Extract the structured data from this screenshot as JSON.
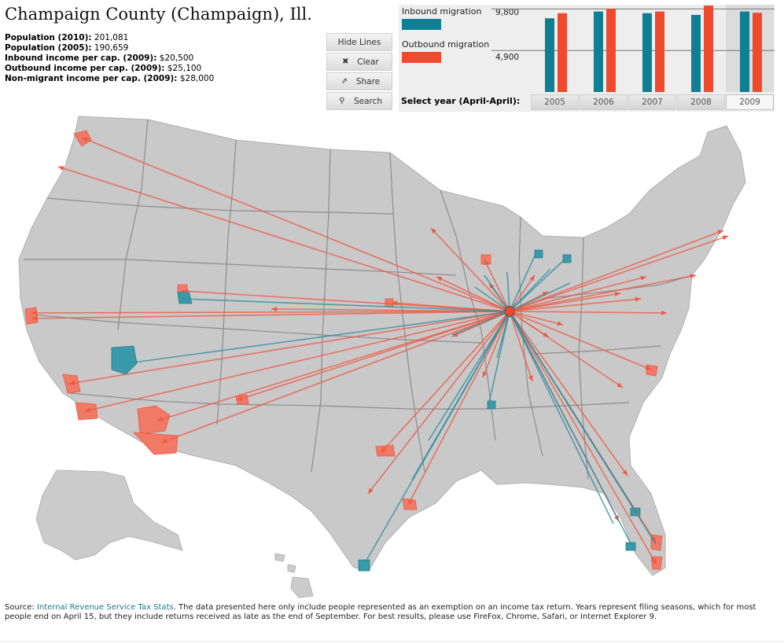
{
  "title": "Champaign County (Champaign), Ill.",
  "stats": [
    {
      "label": "Population (2010):",
      "value": "201,081"
    },
    {
      "label": "Population (2005):",
      "value": "190,659"
    },
    {
      "label": "Inbound income per cap. (2009):",
      "value": "$20,500"
    },
    {
      "label": "Outbound income per cap. (2009):",
      "value": "$25,100"
    },
    {
      "label": "Non-migrant income per cap. (2009):",
      "value": "$28,000"
    }
  ],
  "toolbar": {
    "hide_lines": "Hide Lines",
    "clear": "Clear",
    "share": "Share",
    "search": "Search",
    "clear_icon": "✖",
    "share_icon": "⇗",
    "search_icon": "⚲"
  },
  "legend": {
    "inbound": "Inbound migration",
    "outbound": "Outbound migration",
    "inbound_color": "#0f7f93",
    "outbound_color": "#ef4a2e"
  },
  "chart_data": {
    "type": "bar",
    "categories": [
      "2005",
      "2006",
      "2007",
      "2008",
      "2009"
    ],
    "series": [
      {
        "name": "Inbound migration",
        "values": [
          8700,
          9500,
          9300,
          9100,
          9500
        ]
      },
      {
        "name": "Outbound migration",
        "values": [
          9300,
          9800,
          9500,
          10200,
          9350
        ]
      }
    ],
    "y_ticks": [
      "9,800",
      "4,900"
    ],
    "ylim": [
      0,
      10300
    ],
    "selected": "2009"
  },
  "year_selector_label": "Select year (April-April):",
  "source": {
    "prefix": "Source: ",
    "link": "Internal Revenue Service Tax Stats",
    "text": ". The data presented here only include people represented as an exemption on an income tax return. Years represent filing seasons, which for most people end on April 15, but they include returns received as late as the end of September. For best results, please use FireFox, Chrome, Safari, or Internet Explorer 9."
  },
  "map": {
    "origin": [
      648,
      396
    ],
    "outbound": [
      [
        104,
        175
      ],
      [
        74,
        212
      ],
      [
        40,
        398
      ],
      [
        40,
        405
      ],
      [
        88,
        488
      ],
      [
        108,
        523
      ],
      [
        200,
        535
      ],
      [
        205,
        563
      ],
      [
        301,
        509
      ],
      [
        232,
        370
      ],
      [
        345,
        393
      ],
      [
        498,
        385
      ],
      [
        548,
        290
      ],
      [
        555,
        352
      ],
      [
        575,
        428
      ],
      [
        616,
        330
      ],
      [
        622,
        360
      ],
      [
        484,
        576
      ],
      [
        468,
        628
      ],
      [
        519,
        642
      ],
      [
        677,
        485
      ],
      [
        614,
        480
      ],
      [
        828,
        470
      ],
      [
        792,
        493
      ],
      [
        798,
        605
      ],
      [
        787,
        663
      ],
      [
        834,
        690
      ],
      [
        835,
        718
      ],
      [
        920,
        293
      ],
      [
        926,
        300
      ],
      [
        885,
        350
      ],
      [
        822,
        352
      ],
      [
        815,
        380
      ],
      [
        789,
        373
      ],
      [
        848,
        398
      ],
      [
        716,
        413
      ],
      [
        698,
        429
      ],
      [
        697,
        371
      ],
      [
        680,
        350
      ]
    ],
    "inbound": [
      [
        232,
        380
      ],
      [
        162,
        462
      ],
      [
        463,
        718
      ],
      [
        524,
        610
      ],
      [
        545,
        560
      ],
      [
        575,
        426
      ],
      [
        621,
        516
      ],
      [
        604,
        365
      ],
      [
        616,
        350
      ],
      [
        681,
        323
      ],
      [
        718,
        330
      ],
      [
        700,
        342
      ],
      [
        780,
        666
      ],
      [
        803,
        693
      ],
      [
        834,
        692
      ],
      [
        808,
        650
      ],
      [
        645,
        346
      ],
      [
        632,
        455
      ],
      [
        725,
        360
      ]
    ],
    "out_regions": [
      [
        [
          94,
          170
        ],
        [
          110,
          166
        ],
        [
          116,
          178
        ],
        [
          104,
          186
        ]
      ],
      [
        [
          32,
          393
        ],
        [
          46,
          391
        ],
        [
          48,
          410
        ],
        [
          34,
          412
        ]
      ],
      [
        [
          80,
          476
        ],
        [
          98,
          478
        ],
        [
          102,
          498
        ],
        [
          86,
          500
        ]
      ],
      [
        [
          96,
          512
        ],
        [
          122,
          514
        ],
        [
          124,
          532
        ],
        [
          100,
          534
        ]
      ],
      [
        [
          175,
          520
        ],
        [
          198,
          516
        ],
        [
          216,
          528
        ],
        [
          210,
          548
        ],
        [
          178,
          552
        ]
      ],
      [
        [
          170,
          550
        ],
        [
          226,
          554
        ],
        [
          224,
          576
        ],
        [
          196,
          578
        ]
      ],
      [
        [
          478,
          568
        ],
        [
          500,
          566
        ],
        [
          502,
          580
        ],
        [
          480,
          580
        ]
      ],
      [
        [
          512,
          634
        ],
        [
          528,
          636
        ],
        [
          530,
          648
        ],
        [
          514,
          648
        ]
      ],
      [
        [
          822,
          464
        ],
        [
          836,
          466
        ],
        [
          834,
          478
        ],
        [
          822,
          476
        ]
      ],
      [
        [
          828,
          680
        ],
        [
          842,
          682
        ],
        [
          840,
          700
        ],
        [
          828,
          698
        ]
      ],
      [
        [
          828,
          708
        ],
        [
          842,
          708
        ],
        [
          840,
          724
        ],
        [
          830,
          724
        ]
      ],
      [
        [
          612,
          324
        ],
        [
          624,
          324
        ],
        [
          624,
          336
        ],
        [
          612,
          336
        ]
      ],
      [
        [
          226,
          362
        ],
        [
          238,
          362
        ],
        [
          238,
          372
        ],
        [
          226,
          372
        ]
      ],
      [
        [
          490,
          380
        ],
        [
          500,
          380
        ],
        [
          500,
          390
        ],
        [
          490,
          390
        ]
      ],
      [
        [
          300,
          504
        ],
        [
          314,
          502
        ],
        [
          316,
          514
        ],
        [
          302,
          514
        ]
      ]
    ],
    "in_regions": [
      [
        [
          142,
          442
        ],
        [
          170,
          440
        ],
        [
          174,
          462
        ],
        [
          160,
          476
        ],
        [
          142,
          470
        ]
      ],
      [
        [
          226,
          372
        ],
        [
          240,
          370
        ],
        [
          244,
          386
        ],
        [
          228,
          386
        ]
      ],
      [
        [
          456,
          712
        ],
        [
          470,
          712
        ],
        [
          470,
          726
        ],
        [
          456,
          726
        ]
      ],
      [
        [
          620,
          510
        ],
        [
          630,
          510
        ],
        [
          630,
          520
        ],
        [
          620,
          520
        ]
      ],
      [
        [
          796,
          690
        ],
        [
          808,
          690
        ],
        [
          808,
          700
        ],
        [
          796,
          700
        ]
      ],
      [
        [
          802,
          646
        ],
        [
          814,
          646
        ],
        [
          814,
          656
        ],
        [
          802,
          656
        ]
      ],
      [
        [
          680,
          318
        ],
        [
          690,
          318
        ],
        [
          690,
          328
        ],
        [
          680,
          328
        ]
      ],
      [
        [
          716,
          324
        ],
        [
          726,
          324
        ],
        [
          726,
          334
        ],
        [
          716,
          334
        ]
      ]
    ]
  }
}
